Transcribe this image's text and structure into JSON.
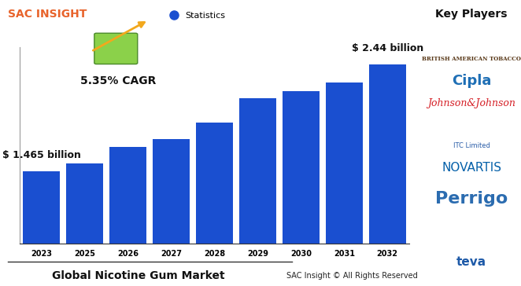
{
  "header": {
    "brand": "SAC INSIGHT",
    "cagr": "5.35% CAGR"
  },
  "chart_data": {
    "type": "bar",
    "title": "Global Nicotine Gum Market",
    "categories": [
      "2023",
      "2025",
      "2026",
      "2027",
      "2028",
      "2029",
      "2030",
      "2031",
      "2032"
    ],
    "series": [
      {
        "name": "Statistics",
        "color": "#1a4fd0",
        "values": [
          1.465,
          1.537,
          1.687,
          1.759,
          1.91,
          2.13,
          2.2,
          2.275,
          2.44
        ]
      }
    ],
    "ylim": [
      0.8,
      2.6
    ],
    "tick_labels": "x",
    "legend": "upper center",
    "annotations": [
      {
        "category": "2023",
        "text": "$ 1.465 billion"
      },
      {
        "category": "2032",
        "text": "$ 2.44 billion"
      }
    ]
  },
  "footer": {
    "copyright": "SAC Insight © All Rights Reserved"
  },
  "key_players": {
    "title": "Key Players",
    "companies": [
      "BRITISH AMERICAN TOBACCO",
      "Cipla",
      "Johnson&Johnson",
      "ITC Limited",
      "NOVARTIS",
      "Perrigo",
      "teva"
    ]
  }
}
